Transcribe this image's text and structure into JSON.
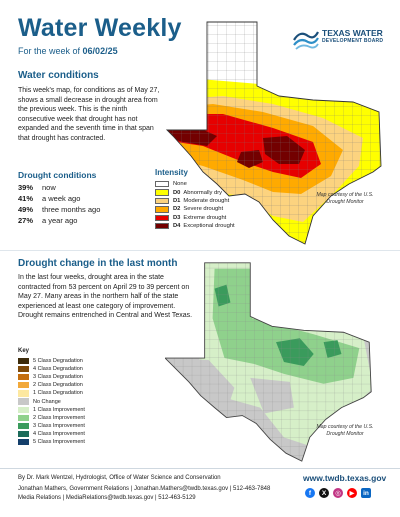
{
  "header": {
    "title": "Water Weekly",
    "week_prefix": "For the week of",
    "week_date": "06/02/25",
    "logo_line1": "TEXAS WATER",
    "logo_line2": "DEVELOPMENT BOARD"
  },
  "conditions": {
    "heading": "Water conditions",
    "body": "This week's map, for conditions as of May 27, shows a small decrease in drought area from the previous week. This is the ninth consecutive week that drought has not expanded and the seventh time in that span that drought has contracted.",
    "drought_heading": "Drought conditions",
    "stats": [
      {
        "value": "39%",
        "label": "now"
      },
      {
        "value": "41%",
        "label": "a week ago"
      },
      {
        "value": "49%",
        "label": "three months ago"
      },
      {
        "value": "27%",
        "label": "a year ago"
      }
    ]
  },
  "intensity": {
    "heading": "Intensity",
    "items": [
      {
        "code": "",
        "label": "None",
        "color": "#ffffff"
      },
      {
        "code": "D0",
        "label": "Abnormally dry",
        "color": "#ffff00"
      },
      {
        "code": "D1",
        "label": "Moderate drought",
        "color": "#fcd37f"
      },
      {
        "code": "D2",
        "label": "Severe drought",
        "color": "#ffaa00"
      },
      {
        "code": "D3",
        "label": "Extreme drought",
        "color": "#e60000"
      },
      {
        "code": "D4",
        "label": "Exceptional drought",
        "color": "#730000"
      }
    ],
    "courtesy": "Map courtesy of the U.S. Drought Monitor"
  },
  "change": {
    "heading": "Drought change in the last month",
    "body": "In the last four weeks, drought area in the state contracted from 53 percent on April 29 to 39 percent on May 27. Many areas in the northern half of the state experienced at least one category of improvement. Drought remains entrenched in Central and West Texas.",
    "key_heading": "Key",
    "key_items": [
      {
        "label": "5 Class Degradation",
        "color": "#3d2b0a"
      },
      {
        "label": "4 Class Degradation",
        "color": "#7f4a0a"
      },
      {
        "label": "3 Class Degradation",
        "color": "#c46e0f"
      },
      {
        "label": "2 Class Degradation",
        "color": "#f2a93b"
      },
      {
        "label": "1 Class Degradation",
        "color": "#fde8a0"
      },
      {
        "label": "No Change",
        "color": "#c8c8c8"
      },
      {
        "label": "1 Class Improvement",
        "color": "#d6efc8"
      },
      {
        "label": "2 Class Improvement",
        "color": "#8fd18c"
      },
      {
        "label": "3 Class Improvement",
        "color": "#3a9b5c"
      },
      {
        "label": "4 Class Improvement",
        "color": "#1c6b5a"
      },
      {
        "label": "5 Class Improvement",
        "color": "#143f6b"
      }
    ],
    "courtesy": "Map courtesy of the U.S. Drought Monitor"
  },
  "footer": {
    "author": "By Dr. Mark Wentzel, Hydrologist, Office of Water Science and Conservation",
    "contact1": "Jonathan Mathers, Government Relations | Jonathan.Mathers@twdb.texas.gov | 512-463-7848",
    "contact2": "Media Relations | MediaRelations@twdb.texas.gov | 512-463-5129",
    "website": "www.twdb.texas.gov",
    "socials": [
      {
        "icon": "facebook-icon",
        "glyph": "f",
        "color": "#1877f2"
      },
      {
        "icon": "x-icon",
        "glyph": "X",
        "color": "#111111"
      },
      {
        "icon": "instagram-icon",
        "glyph": "◎",
        "color": "#c13584"
      },
      {
        "icon": "youtube-icon",
        "glyph": "▶",
        "color": "#ff0000"
      },
      {
        "icon": "linkedin-icon",
        "glyph": "in",
        "color": "#0a66c2"
      }
    ]
  }
}
